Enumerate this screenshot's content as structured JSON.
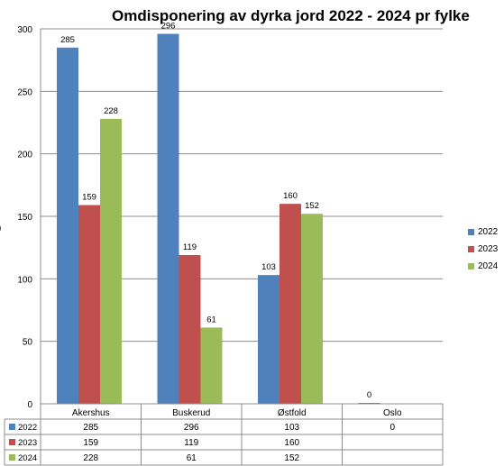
{
  "chart_data": {
    "type": "bar",
    "title": "Omdisponering av dyrka jord 2022 - 2024 pr fylke",
    "categories": [
      "Akershus",
      "Buskerud",
      "Østfold",
      "Oslo"
    ],
    "series": [
      {
        "name": "2022",
        "color": "#4F81BD",
        "values": [
          285,
          296,
          103,
          0
        ]
      },
      {
        "name": "2023",
        "color": "#C0504D",
        "values": [
          159,
          119,
          160,
          null
        ]
      },
      {
        "name": "2024",
        "color": "#9BBB59",
        "values": [
          228,
          61,
          152,
          null
        ]
      }
    ],
    "data_labels": [
      [
        "285",
        "296",
        "103",
        "0"
      ],
      [
        "159",
        "119",
        "160",
        ""
      ],
      [
        "228",
        "61",
        "152",
        ""
      ]
    ],
    "table_cells": [
      [
        "285",
        "296",
        "103",
        "0"
      ],
      [
        "159",
        "119",
        "160",
        ""
      ],
      [
        "228",
        "61",
        "152",
        ""
      ]
    ],
    "ylim": [
      0,
      300
    ],
    "yticks": [
      0,
      50,
      100,
      150,
      200,
      250,
      300
    ],
    "grid": true,
    "legend_position": "right",
    "data_table": true
  }
}
